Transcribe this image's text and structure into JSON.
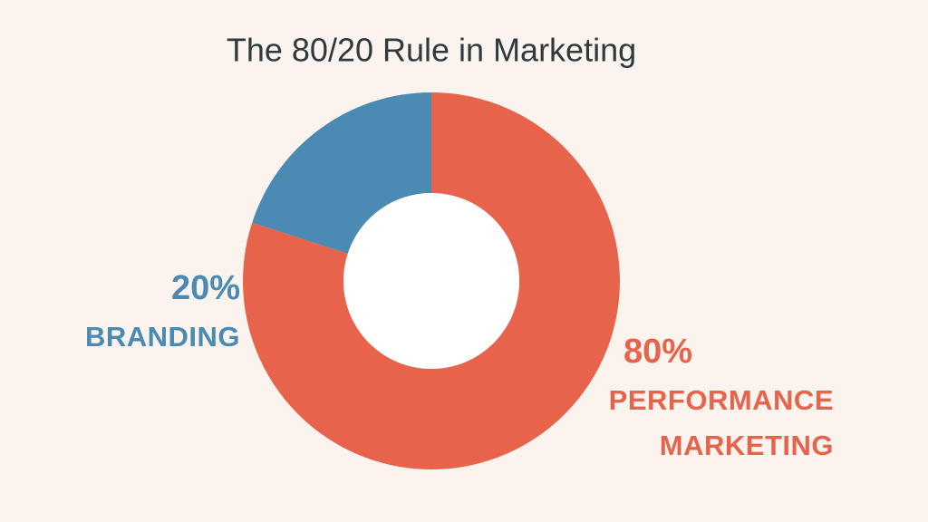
{
  "chart_data": {
    "type": "donut",
    "title": "The 80/20 Rule in Marketing",
    "categories": [
      "BRANDING",
      "PERFORMANCE MARKETING"
    ],
    "values": [
      20,
      80
    ],
    "value_labels": [
      "20%",
      "80%"
    ],
    "colors": [
      "#4b8ab2",
      "#e8634b"
    ]
  }
}
